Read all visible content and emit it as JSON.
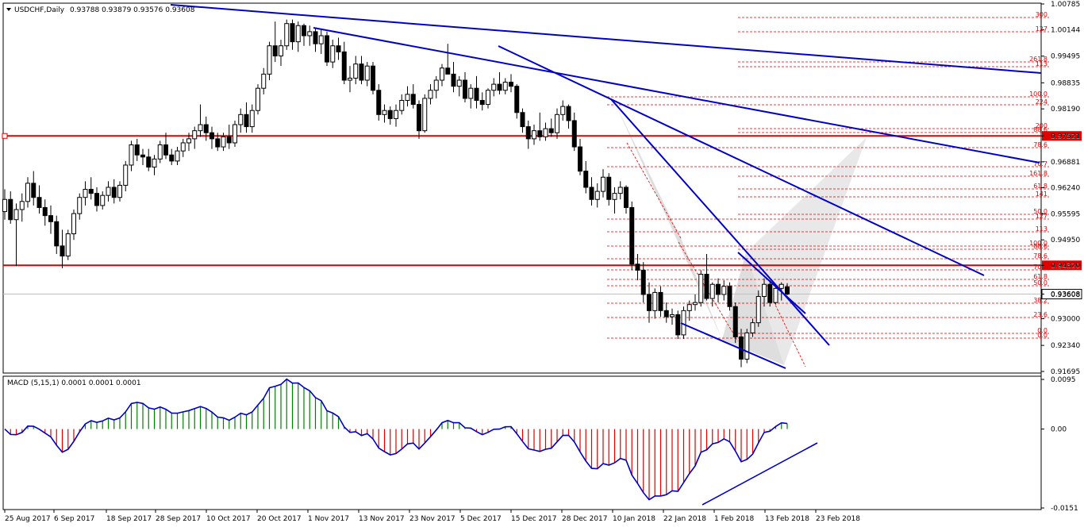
{
  "header": {
    "symbol": "USDCHF,Daily",
    "ohlc": "0.93788 0.93879 0.93576 0.93608",
    "macd_label": "MACD (5,15,1) 0.0001 0.0001 0.0001"
  },
  "colors": {
    "background": "#ffffff",
    "trendline": "#0000c8",
    "level": "#e00000",
    "fib": "#e00000",
    "pattern_fill": "#d8d8d8",
    "macd_positive": "#008000",
    "macd_negative": "#e00000",
    "macd_signal": "#0000c8"
  },
  "chart_data": [
    {
      "type": "candlestick",
      "title": "USDCHF,Daily",
      "ylim": [
        0.91695,
        1.00785
      ],
      "yticks": [
        "1.00785",
        "1.00144",
        "0.99495",
        "0.98835",
        "0.98190",
        "0.97521",
        "0.96881",
        "0.96240",
        "0.95595",
        "0.94950",
        "0.94320",
        "0.93608",
        "0.93000",
        "0.92340",
        "0.91695"
      ],
      "xticks": [
        "25 Aug 2017",
        "6 Sep 2017",
        "18 Sep 2017",
        "28 Sep 2017",
        "10 Oct 2017",
        "20 Oct 2017",
        "1 Nov 2017",
        "13 Nov 2017",
        "23 Nov 2017",
        "5 Dec 2017",
        "15 Dec 2017",
        "28 Dec 2017",
        "10 Jan 2018",
        "22 Jan 2018",
        "1 Feb 2018",
        "13 Feb 2018",
        "23 Feb 2018"
      ],
      "horizontal_levels": [
        {
          "label": "0.97521",
          "value": 0.97521
        },
        {
          "label": "0.94320",
          "value": 0.9432
        }
      ],
      "current_price": {
        "label": "0.93608",
        "value": 0.93608
      },
      "fib_labels": [
        "300",
        "127",
        "261.8",
        "113",
        "100.0",
        "224",
        "200",
        "88.6",
        "78.6",
        "70.7",
        "161.8",
        "61.8",
        "141",
        "50.0",
        "127",
        "113",
        "100.0",
        "88.6",
        "78.6",
        "70.7",
        "61.8",
        "50.0",
        "38.2",
        "23.6",
        "0.0",
        "0.0"
      ],
      "candles": [
        [
          0.9565,
          0.962,
          0.9545,
          0.9595
        ],
        [
          0.9595,
          0.9615,
          0.9535,
          0.9545
        ],
        [
          0.9545,
          0.9585,
          0.943,
          0.957
        ],
        [
          0.957,
          0.961,
          0.954,
          0.959
        ],
        [
          0.959,
          0.965,
          0.9575,
          0.9635
        ],
        [
          0.9635,
          0.9665,
          0.958,
          0.96
        ],
        [
          0.96,
          0.963,
          0.956,
          0.9575
        ],
        [
          0.9575,
          0.9595,
          0.953,
          0.9555
        ],
        [
          0.9555,
          0.958,
          0.951,
          0.954
        ],
        [
          0.954,
          0.9555,
          0.946,
          0.948
        ],
        [
          0.948,
          0.952,
          0.9425,
          0.9455
        ],
        [
          0.9455,
          0.952,
          0.9445,
          0.951
        ],
        [
          0.951,
          0.957,
          0.9495,
          0.956
        ],
        [
          0.956,
          0.961,
          0.9545,
          0.96
        ],
        [
          0.96,
          0.964,
          0.958,
          0.962
        ],
        [
          0.962,
          0.965,
          0.9595,
          0.961
        ],
        [
          0.961,
          0.9625,
          0.9565,
          0.958
        ],
        [
          0.958,
          0.9615,
          0.957,
          0.9605
        ],
        [
          0.9605,
          0.964,
          0.959,
          0.9625
        ],
        [
          0.9625,
          0.9645,
          0.9585,
          0.96
        ],
        [
          0.96,
          0.964,
          0.959,
          0.963
        ],
        [
          0.963,
          0.969,
          0.9615,
          0.968
        ],
        [
          0.968,
          0.974,
          0.9665,
          0.973
        ],
        [
          0.973,
          0.9745,
          0.969,
          0.9705
        ],
        [
          0.9705,
          0.972,
          0.968,
          0.97
        ],
        [
          0.97,
          0.972,
          0.9665,
          0.9675
        ],
        [
          0.9675,
          0.9705,
          0.9655,
          0.9695
        ],
        [
          0.9695,
          0.974,
          0.9685,
          0.973
        ],
        [
          0.973,
          0.976,
          0.9695,
          0.9705
        ],
        [
          0.9705,
          0.972,
          0.968,
          0.969
        ],
        [
          0.969,
          0.9725,
          0.968,
          0.9715
        ],
        [
          0.9715,
          0.9745,
          0.97,
          0.9735
        ],
        [
          0.9735,
          0.976,
          0.9715,
          0.9745
        ],
        [
          0.9745,
          0.9775,
          0.972,
          0.9765
        ],
        [
          0.9765,
          0.983,
          0.975,
          0.978
        ],
        [
          0.978,
          0.98,
          0.974,
          0.976
        ],
        [
          0.976,
          0.9775,
          0.972,
          0.9745
        ],
        [
          0.9745,
          0.976,
          0.9715,
          0.9725
        ],
        [
          0.9725,
          0.976,
          0.9715,
          0.975
        ],
        [
          0.975,
          0.978,
          0.972,
          0.9735
        ],
        [
          0.9735,
          0.979,
          0.9725,
          0.978
        ],
        [
          0.978,
          0.982,
          0.976,
          0.9805
        ],
        [
          0.9805,
          0.9835,
          0.976,
          0.9775
        ],
        [
          0.9775,
          0.983,
          0.976,
          0.9815
        ],
        [
          0.9815,
          0.988,
          0.9805,
          0.987
        ],
        [
          0.987,
          0.992,
          0.9855,
          0.9905
        ],
        [
          0.9905,
          0.9985,
          0.989,
          0.9975
        ],
        [
          0.9975,
          1.0035,
          0.9935,
          0.995
        ],
        [
          0.995,
          0.999,
          0.9925,
          0.9975
        ],
        [
          0.9975,
          1.004,
          0.9965,
          1.003
        ],
        [
          1.003,
          1.004,
          0.9965,
          0.9985
        ],
        [
          0.9985,
          1.0035,
          0.996,
          1.0025
        ],
        [
          1.0025,
          1.003,
          0.9975,
          1.0
        ],
        [
          1.0,
          1.0025,
          0.9975,
          1.001
        ],
        [
          1.001,
          1.002,
          0.996,
          0.998
        ],
        [
          0.998,
          1.0015,
          0.9955,
          1.0
        ],
        [
          1.0,
          1.001,
          0.9925,
          0.9935
        ],
        [
          0.9935,
          0.999,
          0.992,
          0.9975
        ],
        [
          0.9975,
          0.9995,
          0.994,
          0.996
        ],
        [
          0.996,
          0.9985,
          0.988,
          0.989
        ],
        [
          0.989,
          0.9925,
          0.986,
          0.9895
        ],
        [
          0.9895,
          0.995,
          0.988,
          0.993
        ],
        [
          0.993,
          0.995,
          0.988,
          0.989
        ],
        [
          0.989,
          0.9935,
          0.9875,
          0.9925
        ],
        [
          0.9925,
          0.9935,
          0.9855,
          0.9865
        ],
        [
          0.9865,
          0.988,
          0.979,
          0.9805
        ],
        [
          0.9805,
          0.983,
          0.9785,
          0.9815
        ],
        [
          0.9815,
          0.9825,
          0.978,
          0.9795
        ],
        [
          0.9795,
          0.983,
          0.9775,
          0.9815
        ],
        [
          0.9815,
          0.9855,
          0.9805,
          0.984
        ],
        [
          0.984,
          0.9875,
          0.9825,
          0.9855
        ],
        [
          0.9855,
          0.988,
          0.982,
          0.983
        ],
        [
          0.983,
          0.984,
          0.9745,
          0.9765
        ],
        [
          0.9765,
          0.9855,
          0.976,
          0.9845
        ],
        [
          0.9845,
          0.988,
          0.983,
          0.9865
        ],
        [
          0.9865,
          0.99,
          0.9845,
          0.989
        ],
        [
          0.989,
          0.993,
          0.9875,
          0.992
        ],
        [
          0.992,
          0.998,
          0.9905,
          0.9905
        ],
        [
          0.9905,
          0.9935,
          0.986,
          0.9875
        ],
        [
          0.9875,
          0.99,
          0.985,
          0.989
        ],
        [
          0.989,
          0.991,
          0.9835,
          0.9845
        ],
        [
          0.9845,
          0.988,
          0.982,
          0.987
        ],
        [
          0.987,
          0.99,
          0.982,
          0.984
        ],
        [
          0.984,
          0.986,
          0.9815,
          0.983
        ],
        [
          0.983,
          0.987,
          0.982,
          0.9865
        ],
        [
          0.9865,
          0.9895,
          0.985,
          0.988
        ],
        [
          0.988,
          0.991,
          0.9855,
          0.9865
        ],
        [
          0.9865,
          0.9895,
          0.9855,
          0.9885
        ],
        [
          0.9885,
          0.9905,
          0.986,
          0.9875
        ],
        [
          0.9875,
          0.988,
          0.9795,
          0.981
        ],
        [
          0.981,
          0.982,
          0.976,
          0.9775
        ],
        [
          0.9775,
          0.979,
          0.972,
          0.9745
        ],
        [
          0.9745,
          0.978,
          0.973,
          0.9765
        ],
        [
          0.9765,
          0.981,
          0.974,
          0.975
        ],
        [
          0.975,
          0.9785,
          0.974,
          0.977
        ],
        [
          0.977,
          0.9795,
          0.975,
          0.976
        ],
        [
          0.976,
          0.982,
          0.9745,
          0.9805
        ],
        [
          0.9805,
          0.984,
          0.979,
          0.9825
        ],
        [
          0.9825,
          0.983,
          0.977,
          0.979
        ],
        [
          0.979,
          0.981,
          0.9715,
          0.9725
        ],
        [
          0.9725,
          0.9745,
          0.9655,
          0.9665
        ],
        [
          0.9665,
          0.969,
          0.961,
          0.9625
        ],
        [
          0.9625,
          0.965,
          0.958,
          0.9595
        ],
        [
          0.9595,
          0.9635,
          0.9575,
          0.9615
        ],
        [
          0.9615,
          0.967,
          0.96,
          0.965
        ],
        [
          0.965,
          0.966,
          0.958,
          0.9595
        ],
        [
          0.9595,
          0.9625,
          0.956,
          0.961
        ],
        [
          0.961,
          0.964,
          0.9595,
          0.9625
        ],
        [
          0.9625,
          0.963,
          0.956,
          0.9575
        ],
        [
          0.9575,
          0.959,
          0.942,
          0.9435
        ],
        [
          0.9435,
          0.946,
          0.9395,
          0.942
        ],
        [
          0.942,
          0.944,
          0.934,
          0.936
        ],
        [
          0.936,
          0.939,
          0.929,
          0.932
        ],
        [
          0.932,
          0.9375,
          0.93,
          0.9365
        ],
        [
          0.9365,
          0.938,
          0.9305,
          0.932
        ],
        [
          0.932,
          0.934,
          0.929,
          0.9305
        ],
        [
          0.9305,
          0.9325,
          0.9285,
          0.931
        ],
        [
          0.931,
          0.932,
          0.925,
          0.926
        ],
        [
          0.926,
          0.933,
          0.925,
          0.932
        ],
        [
          0.932,
          0.9345,
          0.9295,
          0.9335
        ],
        [
          0.9335,
          0.936,
          0.932,
          0.934
        ],
        [
          0.934,
          0.942,
          0.933,
          0.941
        ],
        [
          0.941,
          0.946,
          0.9345,
          0.935
        ],
        [
          0.935,
          0.939,
          0.933,
          0.9385
        ],
        [
          0.9385,
          0.94,
          0.934,
          0.936
        ],
        [
          0.936,
          0.9395,
          0.9345,
          0.938
        ],
        [
          0.938,
          0.939,
          0.932,
          0.933
        ],
        [
          0.933,
          0.934,
          0.924,
          0.9255
        ],
        [
          0.9255,
          0.9275,
          0.918,
          0.92
        ],
        [
          0.92,
          0.9275,
          0.919,
          0.9265
        ],
        [
          0.9265,
          0.93,
          0.9255,
          0.929
        ],
        [
          0.929,
          0.937,
          0.928,
          0.9355
        ],
        [
          0.9355,
          0.94,
          0.933,
          0.9385
        ],
        [
          0.9385,
          0.9395,
          0.933,
          0.934
        ],
        [
          0.934,
          0.938,
          0.9335,
          0.9375
        ],
        [
          0.9375,
          0.939,
          0.9345,
          0.9385
        ],
        [
          0.9379,
          0.9388,
          0.9358,
          0.9361
        ]
      ]
    },
    {
      "type": "bar",
      "title": "MACD (5,15,1) 0.0001 0.0001 0.0001",
      "ylim": [
        -0.0151,
        0.0095
      ],
      "yticks": [
        "0.0095",
        "0.00",
        "-0.0151"
      ],
      "annotation": "signal line and histogram"
    }
  ]
}
